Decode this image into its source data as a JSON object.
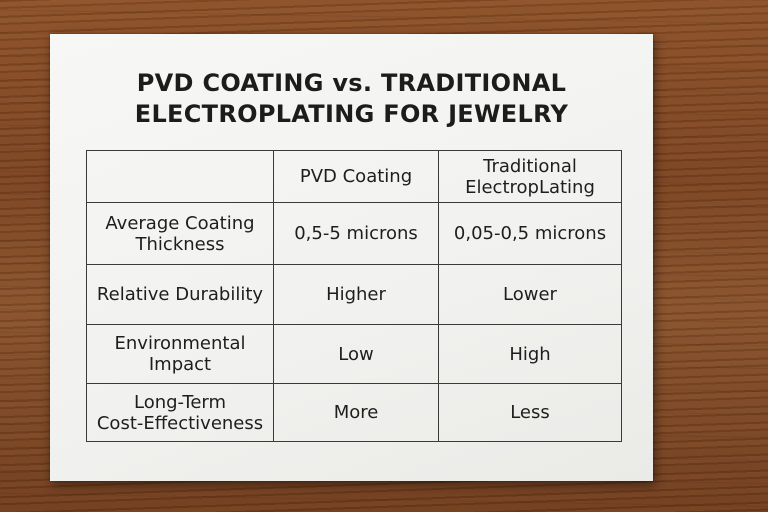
{
  "title": {
    "line1": "PVD COATING vs. TRADITIONAL",
    "line2": "ELECTROPLATING FOR JEWELRY"
  },
  "table": {
    "headers": [
      "",
      "PVD Coating",
      "Traditional ElectropLating"
    ],
    "header_lines": {
      "pvd": "PVD Coating",
      "trad_1": "Traditional",
      "trad_2": "ElectropLating"
    },
    "rows": [
      {
        "label_lines": [
          "Average Coating",
          "Thickness"
        ],
        "pvd": "0,5-5 microns",
        "traditional": "0,05-0,5 microns"
      },
      {
        "label_lines": [
          "Relative Durability"
        ],
        "pvd": "Higher",
        "traditional": "Lower"
      },
      {
        "label_lines": [
          "Environmental",
          "Impact"
        ],
        "pvd": "Low",
        "traditional": "High"
      },
      {
        "label_lines": [
          "Long-Term",
          "Cost-Effectiveness"
        ],
        "pvd": "More",
        "traditional": "Less"
      }
    ]
  },
  "colors": {
    "wood": "#7a4220",
    "card": "#f3f3f1",
    "text": "#1e1e1e",
    "border": "#3a3a3a"
  }
}
